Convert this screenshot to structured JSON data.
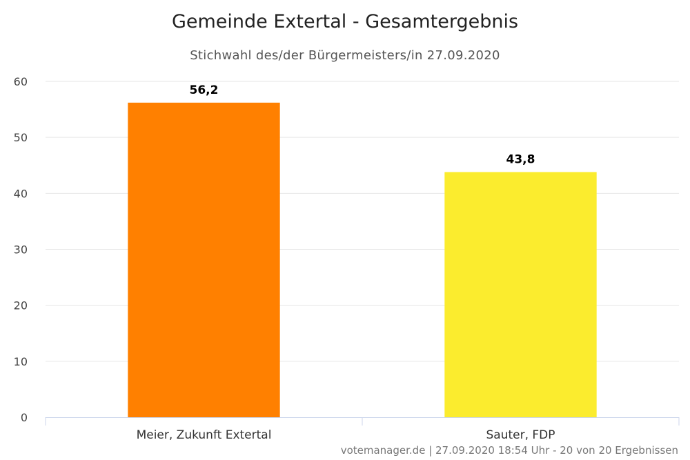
{
  "chart_data": {
    "type": "bar",
    "title": "Gemeinde Extertal - Gesamtergebnis",
    "subtitle": "Stichwahl des/der Bürgermeisters/in 27.09.2020",
    "categories": [
      "Meier, Zukunft Extertal",
      "Sauter, FDP"
    ],
    "values": [
      56.2,
      43.8
    ],
    "data_labels": [
      "56,2",
      "43,8"
    ],
    "colors": [
      "#ff8000",
      "#fbec2e"
    ],
    "ylim": [
      0,
      60
    ],
    "yticks": [
      0,
      10,
      20,
      30,
      40,
      50,
      60
    ],
    "grid": true,
    "legend": false,
    "credits": "votemanager.de | 27.09.2020 18:54 Uhr - 20 von 20 Ergebnissen"
  }
}
